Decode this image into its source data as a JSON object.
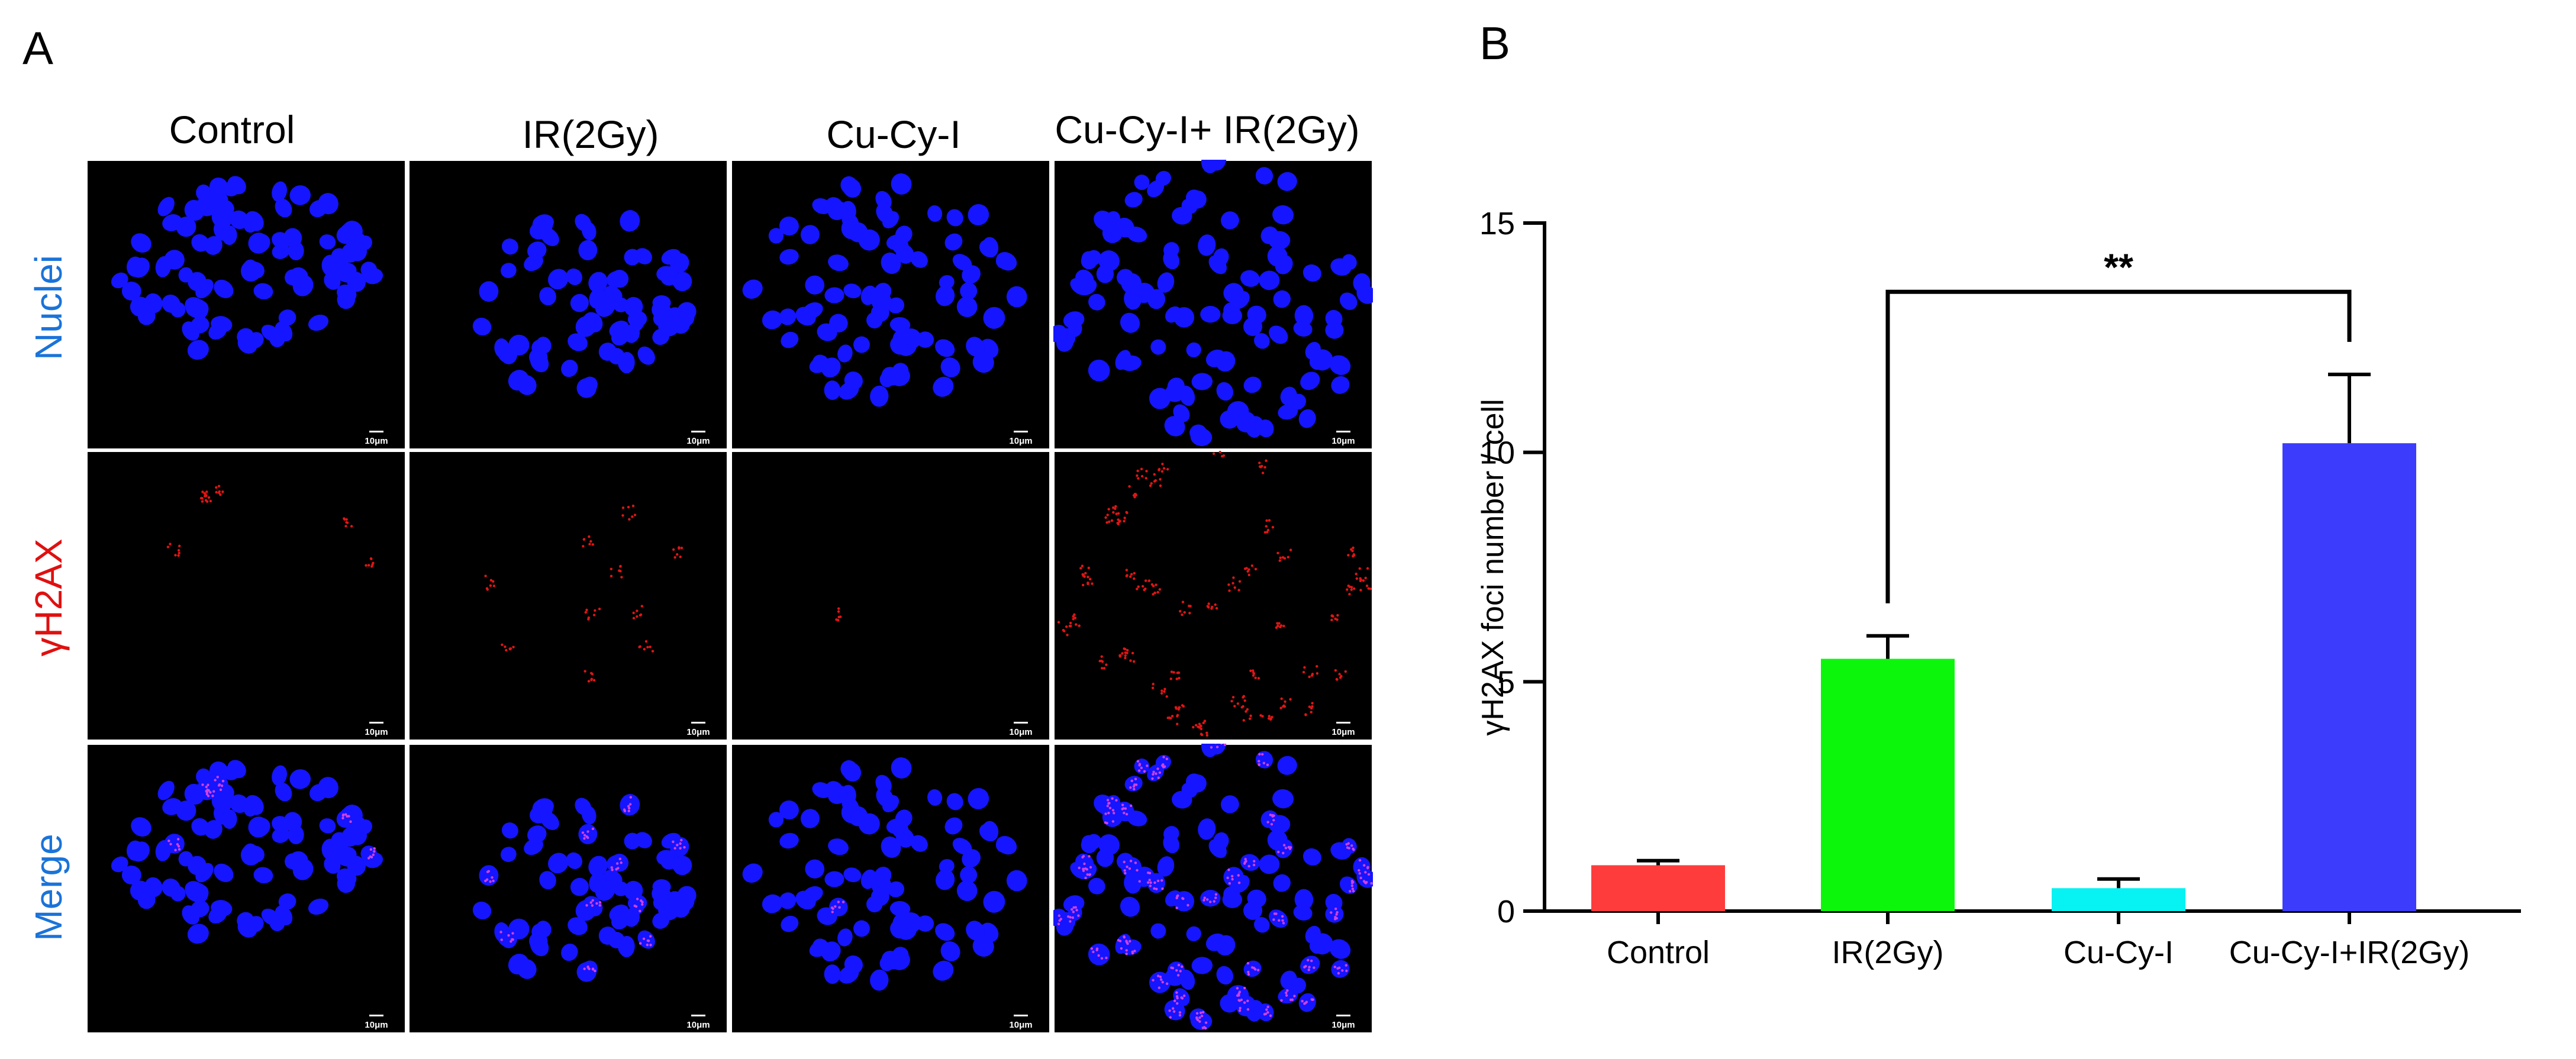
{
  "panels": {
    "a_label": "A",
    "b_label": "B"
  },
  "micrograph": {
    "column_titles": [
      "Control",
      "IR(2Gy)",
      "Cu-Cy-I",
      "Cu-Cy-I+ IR(2Gy)"
    ],
    "row_labels": [
      "Nuclei",
      "γH2AX",
      "Merge"
    ],
    "row_label_colors": [
      "#1a73d9",
      "#e01010",
      "#1a73d9"
    ],
    "scale_bar_label": "10μm",
    "colors": {
      "nuclei": "#1515ff",
      "foci": "#e01515",
      "merge_foci": "#d040e0",
      "background": "#000000",
      "border": "#ffffff"
    }
  },
  "chart_data": {
    "type": "bar",
    "categories": [
      "Control",
      "IR(2Gy)",
      "Cu-Cy-I",
      "Cu-Cy-I+IR(2Gy)"
    ],
    "values": [
      1.0,
      5.5,
      0.5,
      10.2
    ],
    "errors": [
      0.1,
      0.5,
      0.2,
      1.5
    ],
    "colors": [
      "#fe3c3c",
      "#0cf60c",
      "#07f2f2",
      "#3c3cfd"
    ],
    "ylabel": "γH2AX foci number / cell",
    "xlabel": "",
    "ylim": [
      0,
      15
    ],
    "yticks": [
      0,
      5,
      10,
      15
    ],
    "ytick_labels": [
      "0",
      "5",
      "10",
      "15"
    ],
    "significance": {
      "from": "IR(2Gy)",
      "to": "Cu-Cy-I+IR(2Gy)",
      "label": "**"
    }
  }
}
